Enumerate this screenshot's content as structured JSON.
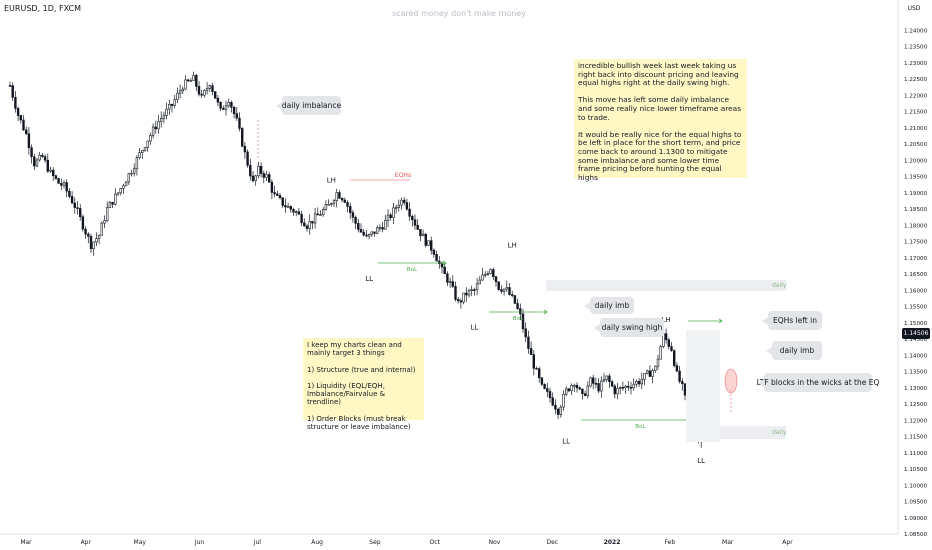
{
  "chart_data": {
    "type": "candlestick",
    "title": "EURUSD, 1D, FXCM",
    "subtitle": "scared money don't make money",
    "y_unit": "USD",
    "ylim": [
      1.085,
      1.245
    ],
    "y_ticks": [
      "1.24000",
      "1.23500",
      "1.23000",
      "1.22500",
      "1.22000",
      "1.21500",
      "1.21000",
      "1.20500",
      "1.20000",
      "1.19500",
      "1.19000",
      "1.18500",
      "1.18000",
      "1.17500",
      "1.17000",
      "1.16500",
      "1.16000",
      "1.15500",
      "1.15000",
      "1.14500",
      "1.14000",
      "1.13500",
      "1.13000",
      "1.12500",
      "1.12000",
      "1.11500",
      "1.11000",
      "1.10500",
      "1.10000",
      "1.09500",
      "1.09000",
      "1.08500"
    ],
    "x_ticks": [
      "Mar",
      "Apr",
      "May",
      "Jun",
      "Jul",
      "Aug",
      "Sep",
      "Oct",
      "Nov",
      "Dec",
      "2022",
      "Feb",
      "Mar",
      "Apr"
    ],
    "last_price": "1.14506",
    "price_path": [
      [
        0,
        1.223
      ],
      [
        3,
        1.214
      ],
      [
        6,
        1.208
      ],
      [
        9,
        1.199
      ],
      [
        12,
        1.201
      ],
      [
        15,
        1.196
      ],
      [
        18,
        1.193
      ],
      [
        20,
        1.192
      ],
      [
        24,
        1.186
      ],
      [
        27,
        1.18
      ],
      [
        30,
        1.174
      ],
      [
        33,
        1.177
      ],
      [
        36,
        1.185
      ],
      [
        40,
        1.19
      ],
      [
        45,
        1.197
      ],
      [
        50,
        1.205
      ],
      [
        55,
        1.212
      ],
      [
        60,
        1.217
      ],
      [
        64,
        1.223
      ],
      [
        68,
        1.225
      ],
      [
        71,
        1.219
      ],
      [
        74,
        1.224
      ],
      [
        78,
        1.215
      ],
      [
        81,
        1.219
      ],
      [
        84,
        1.212
      ],
      [
        87,
        1.202
      ],
      [
        90,
        1.193
      ],
      [
        92,
        1.197
      ],
      [
        95,
        1.195
      ],
      [
        98,
        1.189
      ],
      [
        102,
        1.186
      ],
      [
        106,
        1.184
      ],
      [
        110,
        1.18
      ],
      [
        114,
        1.183
      ],
      [
        118,
        1.186
      ],
      [
        121,
        1.19
      ],
      [
        124,
        1.188
      ],
      [
        127,
        1.182
      ],
      [
        130,
        1.178
      ],
      [
        132,
        1.176
      ],
      [
        135,
        1.178
      ],
      [
        138,
        1.18
      ],
      [
        141,
        1.183
      ],
      [
        144,
        1.187
      ],
      [
        146,
        1.188
      ],
      [
        148,
        1.184
      ],
      [
        151,
        1.179
      ],
      [
        154,
        1.175
      ],
      [
        157,
        1.172
      ],
      [
        160,
        1.166
      ],
      [
        163,
        1.162
      ],
      [
        166,
        1.156
      ],
      [
        169,
        1.159
      ],
      [
        172,
        1.16
      ],
      [
        175,
        1.164
      ],
      [
        178,
        1.167
      ],
      [
        181,
        1.161
      ],
      [
        184,
        1.16
      ],
      [
        187,
        1.156
      ],
      [
        189,
        1.152
      ],
      [
        191,
        1.145
      ],
      [
        194,
        1.137
      ],
      [
        197,
        1.13
      ],
      [
        200,
        1.127
      ],
      [
        203,
        1.123
      ],
      [
        206,
        1.129
      ],
      [
        209,
        1.132
      ],
      [
        212,
        1.127
      ],
      [
        215,
        1.132
      ],
      [
        218,
        1.13
      ],
      [
        221,
        1.133
      ],
      [
        224,
        1.129
      ],
      [
        227,
        1.13
      ],
      [
        230,
        1.131
      ],
      [
        233,
        1.132
      ],
      [
        236,
        1.134
      ],
      [
        239,
        1.136
      ],
      [
        242,
        1.146
      ],
      [
        245,
        1.142
      ],
      [
        247,
        1.134
      ],
      [
        249,
        1.13
      ],
      [
        252,
        1.12
      ],
      [
        254,
        1.115
      ],
      [
        255,
        1.114
      ],
      [
        256,
        1.122
      ],
      [
        258,
        1.132
      ],
      [
        260,
        1.142
      ],
      [
        262,
        1.145
      ]
    ]
  },
  "annotations": {
    "structure": [
      {
        "label": "LH",
        "day": 119,
        "price": 1.192
      },
      {
        "label": "LL",
        "day": 133,
        "price": 1.166
      },
      {
        "label": "LH",
        "day": 186,
        "price": 1.172
      },
      {
        "label": "LL",
        "day": 172,
        "price": 1.151
      },
      {
        "label": "LH",
        "day": 243,
        "price": 1.149
      },
      {
        "label": "LL",
        "day": 206,
        "price": 1.116
      },
      {
        "label": "LL",
        "day": 256,
        "price": 1.11
      }
    ],
    "eqh_label": "EQHs",
    "bos_label": "BoL",
    "zone_label": "daily"
  },
  "notes": {
    "main_text": "incredible bullish week last week taking us right back into discount pricing and leaving equal highs right at the daily swing high.\n\nThis move has left some daily imbalance and some really nice lower timeframe areas to trade.\n\nIt would be really nice for the equal highs to be left in place for the short term, and price come back to around 1.1300 to mitigate some imbalance and some lower time frame pricing before hunting the equal highs",
    "rules_text": "I keep my charts clean and mainly target 3 things\n\n1) Structure (true and internal)\n\n1) Liquidity (EQL/EQH, Imbalance/Fairvalue & trendline)\n\n1) Order Blocks (must break structure or leave imbalance)"
  },
  "callouts": {
    "daily_imbalance": "daily imbalance",
    "daily_imb_1": "daily imb",
    "daily_swing_high": "daily swing high",
    "eqhs_left_in": "EQHs left in",
    "daily_imb_2": "daily imb",
    "ltf_blocks": "LTF blocks in the wicks at the EQ"
  },
  "colors": {
    "candle": "#131722",
    "eqh_line": "#f28b8b",
    "bos_line": "#4caf50",
    "note_bg": "#fff8c5",
    "callout_bg": "#e3e5e8",
    "zone_bg": "#eceef1"
  }
}
